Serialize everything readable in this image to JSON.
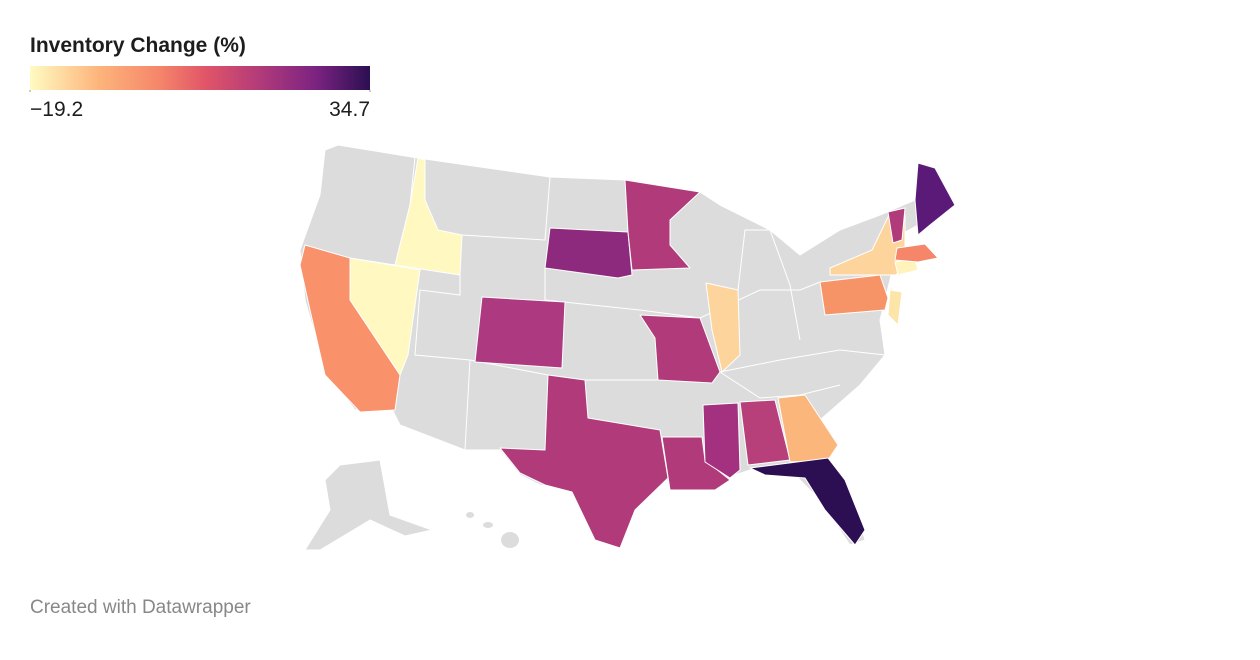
{
  "legend": {
    "title": "Inventory Change (%)",
    "ticks": [
      {
        "value": -19.2,
        "label": "−19.2"
      },
      {
        "value": 34.7,
        "label": "34.7"
      }
    ]
  },
  "footer": "Created with Datawrapper"
}
